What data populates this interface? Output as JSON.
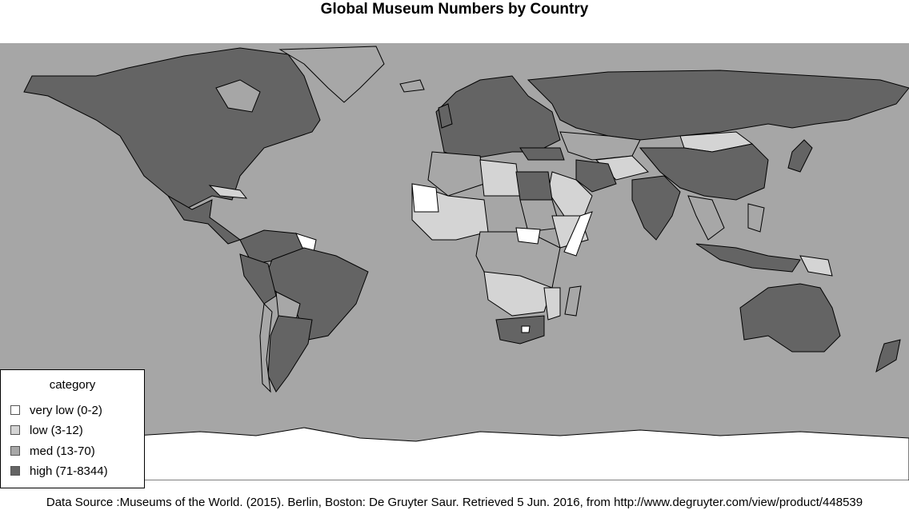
{
  "title": "Global Museum Numbers by Country",
  "legend": {
    "title": "category",
    "items": [
      {
        "label": "very low (0-2)",
        "color": "#ffffff"
      },
      {
        "label": "low (3-12)",
        "color": "#d4d4d4"
      },
      {
        "label": "med (13-70)",
        "color": "#a7a7a7"
      },
      {
        "label": "high (71-8344)",
        "color": "#646464"
      }
    ]
  },
  "colors": {
    "ocean": "#a6a6a6",
    "antarctica": "#ffffff",
    "border": "#000000"
  },
  "source": "Data Source :Museums of the World. (2015). Berlin, Boston: De Gruyter Saur. Retrieved 5 Jun. 2016, from http://www.degruyter.com/view/product/448539"
}
